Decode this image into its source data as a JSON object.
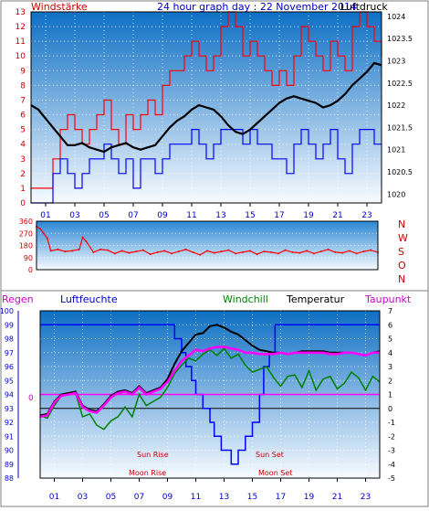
{
  "header": {
    "title": "24 hour graph day : 22 November 2014",
    "left_label": "Windstärke",
    "right_label": "Luftdruck"
  },
  "colors": {
    "frame": "#7f7f7f",
    "plot_top": "#0e6fc4",
    "plot_bottom": "#f7fbff",
    "wind_avg": "#0000ff",
    "wind_gust": "#ff0000",
    "pressure": "#000000",
    "direction": "#ff0000",
    "dewpoint": "#ff00ff",
    "windchill": "#008000",
    "temperature": "#000000",
    "humidity": "#0000ff",
    "rain": "#ff00ff",
    "axis_red": "#cc0000",
    "axis_blue": "#0000cc",
    "sun_label": "#cc0000"
  },
  "chart_data": [
    {
      "type": "line",
      "title": "24 hour graph day : 22 November 2014",
      "x_ticks": [
        "01",
        "03",
        "05",
        "07",
        "09",
        "11",
        "13",
        "15",
        "17",
        "19",
        "21",
        "23"
      ],
      "xlim": [
        0,
        24
      ],
      "left_axis": {
        "label": "Windstärke",
        "ticks": [
          "0",
          "1",
          "2",
          "3",
          "4",
          "5",
          "6",
          "7",
          "8",
          "9",
          "10",
          "11",
          "12",
          "13"
        ],
        "ylim": [
          0,
          13
        ]
      },
      "right_axis": {
        "label": "Luftdruck",
        "ticks": [
          "1020",
          "1020.5",
          "1021",
          "1021.5",
          "1022",
          "1022.5",
          "1023",
          "1023.5",
          "1024"
        ],
        "ylim": [
          1019.8,
          1024.1
        ]
      },
      "series": [
        {
          "name": "Windstärke (avg)",
          "axis": "left",
          "step": true,
          "x": [
            0,
            0.5,
            1,
            1.5,
            2,
            2.5,
            3,
            3.5,
            4,
            4.5,
            5,
            5.5,
            6,
            6.5,
            7,
            7.5,
            8,
            8.5,
            9,
            9.5,
            10,
            10.5,
            11,
            11.5,
            12,
            12.5,
            13,
            13.5,
            14,
            14.5,
            15,
            15.5,
            16,
            16.5,
            17,
            17.5,
            18,
            18.5,
            19,
            19.5,
            20,
            20.5,
            21,
            21.5,
            22,
            22.5,
            23,
            23.5,
            24
          ],
          "y": [
            0,
            0,
            0,
            2,
            3,
            2,
            1,
            2,
            3,
            3,
            4,
            3,
            2,
            3,
            1,
            3,
            3,
            2,
            3,
            4,
            4,
            4,
            5,
            4,
            3,
            4,
            5,
            5,
            5,
            4,
            5,
            4,
            4,
            3,
            3,
            2,
            4,
            5,
            4,
            3,
            4,
            5,
            3,
            2,
            4,
            5,
            5,
            4,
            4
          ]
        },
        {
          "name": "Windstärke (gust)",
          "axis": "left",
          "step": true,
          "x": [
            0,
            0.5,
            1,
            1.5,
            2,
            2.5,
            3,
            3.5,
            4,
            4.5,
            5,
            5.5,
            6,
            6.5,
            7,
            7.5,
            8,
            8.5,
            9,
            9.5,
            10,
            10.5,
            11,
            11.5,
            12,
            12.5,
            13,
            13.5,
            14,
            14.5,
            15,
            15.5,
            16,
            16.5,
            17,
            17.5,
            18,
            18.5,
            19,
            19.5,
            20,
            20.5,
            21,
            21.5,
            22,
            22.5,
            23,
            23.5,
            24
          ],
          "y": [
            1,
            1,
            1,
            3,
            5,
            6,
            5,
            4,
            5,
            6,
            7,
            5,
            4,
            6,
            5,
            6,
            7,
            6,
            8,
            9,
            9,
            10,
            11,
            10,
            9,
            10,
            12,
            13,
            12,
            10,
            11,
            10,
            9,
            8,
            9,
            8,
            10,
            12,
            11,
            10,
            9,
            11,
            10,
            9,
            12,
            13,
            12,
            11,
            10
          ]
        },
        {
          "name": "Luftdruck",
          "axis": "right",
          "x": [
            0,
            0.5,
            1,
            1.5,
            2,
            2.5,
            3,
            3.5,
            4,
            4.5,
            5,
            5.5,
            6,
            6.5,
            7,
            7.5,
            8,
            8.5,
            9,
            9.5,
            10,
            10.5,
            11,
            11.5,
            12,
            12.5,
            13,
            13.5,
            14,
            14.5,
            15,
            15.5,
            16,
            16.5,
            17,
            17.5,
            18,
            18.5,
            19,
            19.5,
            20,
            20.5,
            21,
            21.5,
            22,
            22.5,
            23,
            23.5,
            24
          ],
          "y": [
            1022,
            1021.9,
            1021.7,
            1021.5,
            1021.3,
            1021.1,
            1021.1,
            1021.15,
            1021.05,
            1021,
            1020.95,
            1021.05,
            1021.1,
            1021.15,
            1021.05,
            1021,
            1021.05,
            1021.1,
            1021.3,
            1021.5,
            1021.65,
            1021.75,
            1021.9,
            1022,
            1021.95,
            1021.9,
            1021.75,
            1021.55,
            1021.4,
            1021.35,
            1021.45,
            1021.6,
            1021.75,
            1021.9,
            1022.05,
            1022.15,
            1022.2,
            1022.15,
            1022.1,
            1022.05,
            1021.95,
            1022,
            1022.1,
            1022.25,
            1022.45,
            1022.6,
            1022.75,
            1022.95,
            1022.9
          ]
        }
      ]
    },
    {
      "type": "scatter",
      "title": "",
      "left_axis": {
        "ticks": [
          "360",
          "270",
          "180",
          "90",
          "0"
        ],
        "ylim": [
          0,
          360
        ]
      },
      "right_axis": {
        "ticks": [
          "N",
          "W",
          "S",
          "O",
          "N"
        ]
      },
      "xlim": [
        0,
        24
      ],
      "series": [
        {
          "name": "Windrichtung",
          "x": [
            0,
            0.25,
            0.5,
            0.75,
            1,
            1.5,
            2,
            2.5,
            3,
            3.25,
            3.5,
            4,
            4.5,
            5,
            5.5,
            6,
            6.5,
            7,
            7.5,
            8,
            8.5,
            9,
            9.5,
            10,
            10.5,
            11,
            11.5,
            12,
            12.5,
            13,
            13.5,
            14,
            14.5,
            15,
            15.5,
            16,
            16.5,
            17,
            17.5,
            18,
            18.5,
            19,
            19.5,
            20,
            20.5,
            21,
            21.5,
            22,
            22.5,
            23,
            23.5,
            24
          ],
          "y": [
            320,
            305,
            270,
            235,
            140,
            150,
            135,
            140,
            150,
            240,
            210,
            130,
            150,
            145,
            120,
            140,
            125,
            135,
            145,
            115,
            130,
            140,
            120,
            135,
            150,
            130,
            110,
            140,
            125,
            135,
            145,
            120,
            130,
            140,
            115,
            135,
            130,
            120,
            145,
            130,
            125,
            140,
            120,
            135,
            150,
            130,
            125,
            140,
            120,
            135,
            145,
            130
          ]
        }
      ]
    },
    {
      "type": "line",
      "title": "",
      "x_ticks": [
        "01",
        "03",
        "05",
        "07",
        "09",
        "11",
        "13",
        "15",
        "17",
        "19",
        "21",
        "23"
      ],
      "xlim": [
        0,
        24
      ],
      "left_axis": {
        "ticks": [
          "88",
          "89",
          "90",
          "91",
          "92",
          "93",
          "94",
          "95",
          "96",
          "97",
          "98",
          "99",
          "100"
        ],
        "ylim": [
          88,
          100
        ]
      },
      "right_axis": {
        "ticks": [
          "-5",
          "-4",
          "-3",
          "-2",
          "-1",
          "0",
          "1",
          "2",
          "3",
          "4",
          "5",
          "6",
          "7"
        ],
        "ylim": [
          -5,
          7
        ]
      },
      "legend": [
        "Regen",
        "Luftfeuchte",
        "Windchill",
        "Temperatur",
        "Taupunkt"
      ],
      "rain_label": "0",
      "annotations": {
        "sun_rise": "Sun Rise",
        "sun_set": "Sun Set",
        "moon_rise": "Moon Rise",
        "moon_set": "Moon Set"
      },
      "series": [
        {
          "name": "Luftfeuchte",
          "axis": "left",
          "step": true,
          "x": [
            0,
            9.2,
            9.5,
            10,
            10.3,
            10.7,
            11,
            11.5,
            12,
            12.3,
            12.8,
            13.5,
            14,
            14.5,
            15,
            15.5,
            15.8,
            16.2,
            16.6,
            24
          ],
          "y": [
            99,
            99,
            98,
            97,
            96,
            95,
            94,
            93,
            92,
            91,
            90,
            89,
            90,
            91,
            92,
            94,
            96,
            97,
            99,
            99
          ]
        },
        {
          "name": "Windchill",
          "axis": "right",
          "x": [
            0,
            0.5,
            1,
            1.5,
            2,
            2.5,
            3,
            3.5,
            4,
            4.5,
            5,
            5.5,
            6,
            6.5,
            7,
            7.5,
            8,
            8.5,
            9,
            9.5,
            10,
            10.5,
            11,
            11.5,
            12,
            12.5,
            13,
            13.5,
            14,
            14.5,
            15,
            15.5,
            16,
            16.5,
            17,
            17.5,
            18,
            18.5,
            19,
            19.5,
            20,
            20.5,
            21,
            21.5,
            22,
            22.5,
            23,
            23.5,
            24
          ],
          "y": [
            -0.5,
            -0.7,
            0.2,
            0.9,
            1.0,
            1.1,
            -0.6,
            -0.4,
            -1.2,
            -1.5,
            -0.9,
            -0.6,
            0.1,
            -0.6,
            1.0,
            0.2,
            0.5,
            0.8,
            1.5,
            2.5,
            3.1,
            3.6,
            3.4,
            3.9,
            4.2,
            3.8,
            4.3,
            3.6,
            3.9,
            3.1,
            2.6,
            2.8,
            3.0,
            2.2,
            1.6,
            2.3,
            2.4,
            1.5,
            2.7,
            1.3,
            2.1,
            2.3,
            1.4,
            1.8,
            2.6,
            2.2,
            1.3,
            2.3,
            1.9
          ]
        },
        {
          "name": "Temperatur",
          "axis": "right",
          "x": [
            0,
            0.5,
            1,
            1.5,
            2,
            2.5,
            3,
            3.5,
            4,
            4.5,
            5,
            5.5,
            6,
            6.5,
            7,
            7.5,
            8,
            8.5,
            9,
            9.5,
            10,
            10.5,
            11,
            11.5,
            12,
            12.5,
            13,
            13.5,
            14,
            14.5,
            15,
            15.5,
            16,
            16.5,
            17,
            17.5,
            18,
            18.5,
            19,
            19.5,
            20,
            20.5,
            21,
            21.5,
            22,
            22.5,
            23,
            23.5,
            24
          ],
          "y": [
            -0.5,
            -0.4,
            0.5,
            1.0,
            1.1,
            1.2,
            0.2,
            -0.1,
            -0.2,
            0.3,
            0.9,
            1.2,
            1.3,
            1.1,
            1.6,
            1.1,
            1.3,
            1.5,
            2.1,
            3.2,
            4.1,
            4.7,
            5.3,
            5.4,
            5.9,
            6.0,
            5.8,
            5.5,
            5.3,
            4.9,
            4.5,
            4.2,
            4.1,
            4.0,
            4.0,
            3.9,
            4.0,
            4.1,
            4.1,
            4.1,
            4.1,
            4.0,
            4.0,
            4.0,
            4.0,
            3.9,
            3.8,
            4.0,
            4.1
          ]
        },
        {
          "name": "Taupunkt",
          "axis": "right",
          "x": [
            0,
            0.5,
            1,
            1.5,
            2,
            2.5,
            3,
            3.5,
            4,
            4.5,
            5,
            5.5,
            6,
            6.5,
            7,
            7.5,
            8,
            8.5,
            9,
            9.5,
            10,
            10.5,
            11,
            11.5,
            12,
            12.5,
            13,
            13.5,
            14,
            14.5,
            15,
            15.5,
            16,
            16.5,
            17,
            17.5,
            18,
            18.5,
            19,
            19.5,
            20,
            20.5,
            21,
            21.5,
            22,
            22.5,
            23,
            23.5,
            24
          ],
          "y": [
            -0.6,
            -0.5,
            0.4,
            0.9,
            1.0,
            1.1,
            0.1,
            -0.2,
            -0.3,
            0.2,
            0.8,
            1.1,
            1.2,
            1.0,
            1.5,
            1.0,
            1.2,
            1.4,
            1.9,
            2.7,
            3.4,
            3.8,
            4.2,
            4.1,
            4.3,
            4.4,
            4.4,
            4.3,
            4.2,
            4.0,
            4.0,
            3.9,
            3.9,
            3.9,
            4.0,
            3.9,
            4.0,
            4.0,
            4.0,
            4.0,
            4.0,
            3.9,
            3.9,
            4.0,
            4.0,
            3.9,
            3.8,
            4.0,
            4.0
          ]
        },
        {
          "name": "Regen",
          "axis": "rain",
          "x": [
            0,
            24
          ],
          "y": [
            0,
            0
          ]
        }
      ]
    }
  ]
}
